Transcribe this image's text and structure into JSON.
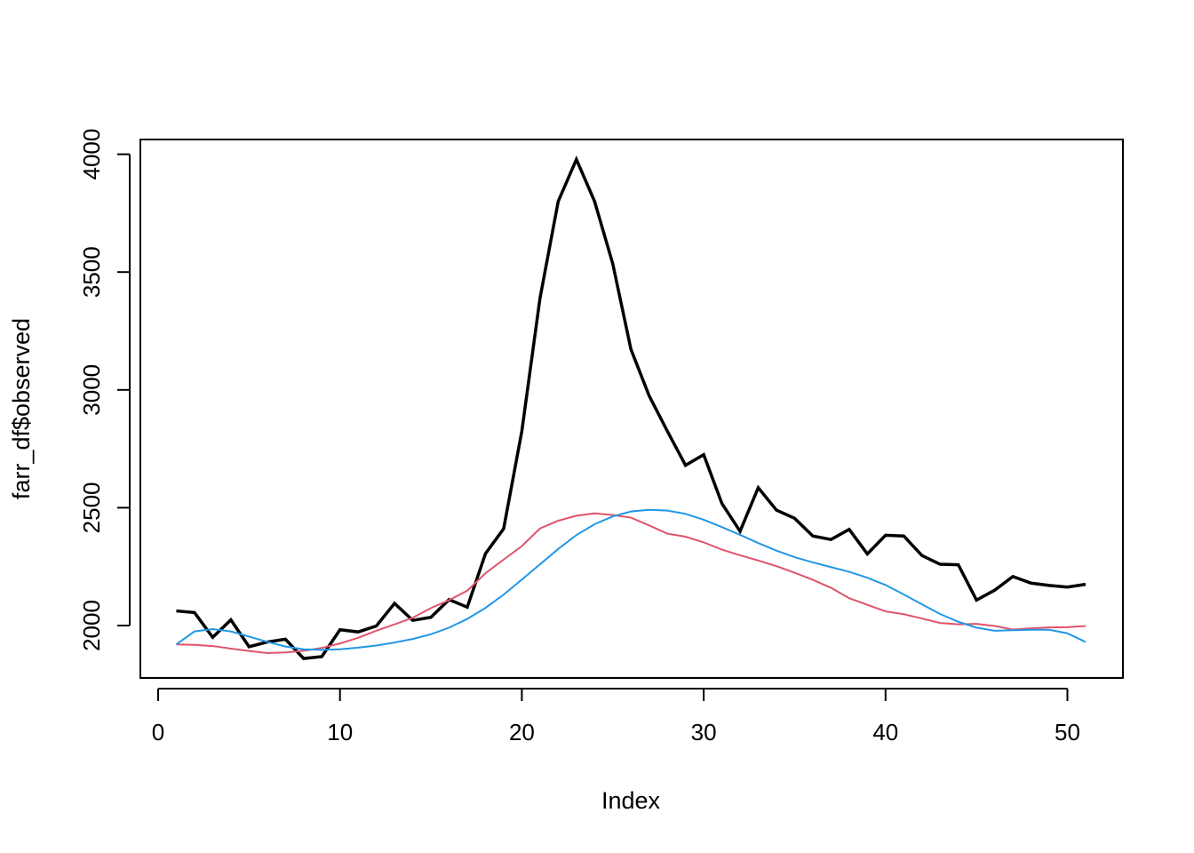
{
  "chart_data": {
    "type": "line",
    "title": "",
    "xlabel": "Index",
    "ylabel": "farr_df$observed",
    "xlim": [
      0,
      53
    ],
    "ylim": [
      1850,
      4000
    ],
    "xticks": [
      0,
      10,
      20,
      30,
      40,
      50
    ],
    "yticks": [
      2000,
      2500,
      3000,
      3500,
      4000
    ],
    "grid": false,
    "legend": "none",
    "x": [
      1,
      2,
      3,
      4,
      5,
      6,
      7,
      8,
      9,
      10,
      11,
      12,
      13,
      14,
      15,
      16,
      17,
      18,
      19,
      20,
      21,
      22,
      23,
      24,
      25,
      26,
      27,
      28,
      29,
      30,
      31,
      32,
      33,
      34,
      35,
      36,
      37,
      38,
      39,
      40,
      41,
      42,
      43,
      44,
      45,
      46,
      47,
      48,
      49,
      50,
      51
    ],
    "series": [
      {
        "color": "#000000",
        "values": [
          2062,
          2055,
          1950,
          2024,
          1910,
          1930,
          1942,
          1860,
          1868,
          1982,
          1973,
          1998,
          2094,
          2022,
          2035,
          2110,
          2078,
          2305,
          2411,
          2825,
          3390,
          3800,
          3978,
          3800,
          3535,
          3172,
          2975,
          2825,
          2680,
          2725,
          2518,
          2400,
          2585,
          2490,
          2455,
          2380,
          2365,
          2408,
          2304,
          2383,
          2380,
          2297,
          2260,
          2258,
          2108,
          2150,
          2208,
          2180,
          2170,
          2163,
          2175
        ]
      },
      {
        "color": "#DF536B",
        "values": [
          1920,
          1918,
          1913,
          1902,
          1892,
          1883,
          1886,
          1893,
          1905,
          1924,
          1948,
          1978,
          2005,
          2033,
          2074,
          2108,
          2148,
          2222,
          2280,
          2337,
          2412,
          2445,
          2466,
          2476,
          2469,
          2458,
          2425,
          2390,
          2377,
          2353,
          2322,
          2298,
          2276,
          2252,
          2224,
          2194,
          2160,
          2116,
          2088,
          2060,
          2048,
          2030,
          2011,
          2005,
          2007,
          1998,
          1983,
          1988,
          1992,
          1993,
          1998
        ]
      },
      {
        "color": "#2297E6",
        "values": [
          1920,
          1975,
          1985,
          1975,
          1953,
          1931,
          1911,
          1899,
          1897,
          1899,
          1906,
          1915,
          1928,
          1943,
          1963,
          1991,
          2028,
          2075,
          2131,
          2195,
          2260,
          2325,
          2384,
          2430,
          2463,
          2484,
          2491,
          2488,
          2474,
          2449,
          2418,
          2385,
          2350,
          2318,
          2290,
          2268,
          2248,
          2228,
          2203,
          2172,
          2132,
          2090,
          2049,
          2016,
          1991,
          1978,
          1980,
          1982,
          1982,
          1967,
          1930
        ]
      }
    ]
  }
}
